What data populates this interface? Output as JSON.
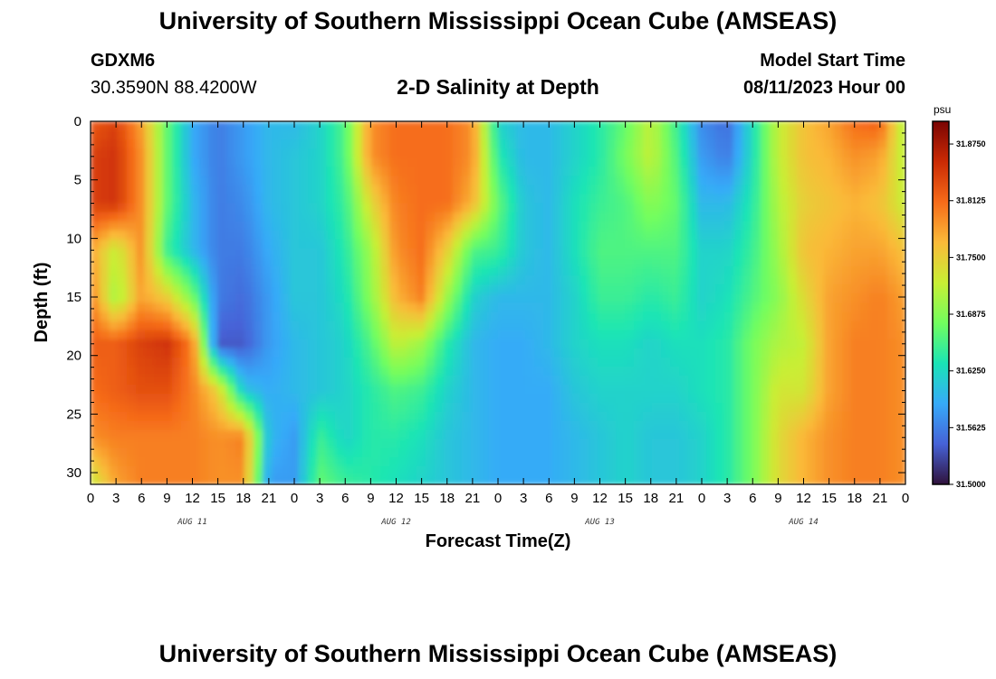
{
  "header": {
    "title": "University of Southern Mississippi Ocean Cube (AMSEAS)",
    "station": "GDXM6",
    "coords": "30.3590N  88.4200W",
    "subtitle": "2-D Salinity at Depth",
    "model_start_label": "Model Start Time",
    "model_start_value": "08/11/2023 Hour 00"
  },
  "footer": {
    "title": "University of Southern Mississippi Ocean Cube (AMSEAS)"
  },
  "chart_data": {
    "type": "heatmap",
    "xlabel": "Forecast Time(Z)",
    "ylabel": "Depth (ft)",
    "x_tick_labels": [
      "0",
      "3",
      "6",
      "9",
      "12",
      "15",
      "18",
      "21",
      "0",
      "3",
      "6",
      "9",
      "12",
      "15",
      "18",
      "21",
      "0",
      "3",
      "6",
      "9",
      "12",
      "15",
      "18",
      "21",
      "0",
      "3",
      "6",
      "9",
      "12",
      "15",
      "18",
      "21",
      "0"
    ],
    "x_range_hours": [
      0,
      96
    ],
    "day_labels": [
      {
        "label": "AUG 11",
        "hour": 12
      },
      {
        "label": "AUG 12",
        "hour": 36
      },
      {
        "label": "AUG 13",
        "hour": 60
      },
      {
        "label": "AUG 14",
        "hour": 84
      }
    ],
    "y_range_ft": [
      0,
      31
    ],
    "y_reversed": true,
    "y_tick_labels": [
      "0",
      "5",
      "10",
      "15",
      "20",
      "25",
      "30"
    ],
    "y_tick_values": [
      0,
      5,
      10,
      15,
      20,
      25,
      30
    ],
    "colorbar": {
      "unit": "psu",
      "range": [
        31.5,
        31.9
      ],
      "tick_values": [
        31.5,
        31.5625,
        31.625,
        31.6875,
        31.75,
        31.8125,
        31.875
      ],
      "tick_labels": [
        "31.5000",
        "31.5625",
        "31.6250",
        "31.6875",
        "31.7500",
        "31.8125",
        "31.8750"
      ],
      "colors": [
        "#30123b",
        "#4662d7",
        "#36aaf9",
        "#1ae4b6",
        "#72fe5e",
        "#c8ef34",
        "#faba39",
        "#f66b19",
        "#ca2a04",
        "#7a0403"
      ]
    },
    "depth_levels_ft": [
      0,
      3,
      7,
      11,
      15,
      19,
      23,
      27,
      31
    ],
    "time_hours": [
      0,
      3,
      6,
      9,
      12,
      15,
      18,
      21,
      24,
      27,
      30,
      33,
      36,
      39,
      42,
      45,
      48,
      51,
      54,
      57,
      60,
      63,
      66,
      69,
      72,
      75,
      78,
      81,
      84,
      87,
      90,
      93,
      96
    ],
    "salinity_psu": [
      [
        31.82,
        31.84,
        31.78,
        31.67,
        31.59,
        31.56,
        31.58,
        31.6,
        31.6,
        31.62,
        31.66,
        31.79,
        31.81,
        31.81,
        31.81,
        31.79,
        31.62,
        31.6,
        31.6,
        31.62,
        31.64,
        31.67,
        31.72,
        31.65,
        31.57,
        31.55,
        31.63,
        31.72,
        31.76,
        31.78,
        31.81,
        31.82,
        31.7
      ],
      [
        31.84,
        31.85,
        31.79,
        31.67,
        31.59,
        31.56,
        31.58,
        31.6,
        31.61,
        31.62,
        31.66,
        31.79,
        31.81,
        31.81,
        31.81,
        31.79,
        31.64,
        31.6,
        31.6,
        31.62,
        31.64,
        31.68,
        31.72,
        31.66,
        31.58,
        31.56,
        31.63,
        31.72,
        31.76,
        31.77,
        31.79,
        31.78,
        31.71
      ],
      [
        31.84,
        31.85,
        31.79,
        31.67,
        31.6,
        31.56,
        31.57,
        31.6,
        31.61,
        31.62,
        31.65,
        31.74,
        31.8,
        31.81,
        31.81,
        31.77,
        31.67,
        31.61,
        31.6,
        31.63,
        31.65,
        31.66,
        31.69,
        31.67,
        31.6,
        31.6,
        31.64,
        31.71,
        31.75,
        31.76,
        31.77,
        31.76,
        31.72
      ],
      [
        31.78,
        31.72,
        31.79,
        31.65,
        31.6,
        31.56,
        31.56,
        31.59,
        31.61,
        31.61,
        31.64,
        31.7,
        31.79,
        31.81,
        31.75,
        31.66,
        31.65,
        31.61,
        31.6,
        31.63,
        31.66,
        31.66,
        31.66,
        31.66,
        31.62,
        31.62,
        31.65,
        31.7,
        31.76,
        31.77,
        31.78,
        31.78,
        31.76
      ],
      [
        31.8,
        31.7,
        31.78,
        31.75,
        31.68,
        31.56,
        31.55,
        31.58,
        31.61,
        31.61,
        31.63,
        31.69,
        31.77,
        31.8,
        31.7,
        31.62,
        31.6,
        31.6,
        31.6,
        31.62,
        31.65,
        31.65,
        31.64,
        31.65,
        31.62,
        31.63,
        31.66,
        31.69,
        31.74,
        31.78,
        31.79,
        31.8,
        31.78
      ],
      [
        31.82,
        31.82,
        31.84,
        31.85,
        31.8,
        31.54,
        31.54,
        31.58,
        31.6,
        31.61,
        31.62,
        31.66,
        31.72,
        31.7,
        31.64,
        31.6,
        31.59,
        31.59,
        31.6,
        31.62,
        31.63,
        31.63,
        31.62,
        31.63,
        31.63,
        31.64,
        31.68,
        31.71,
        31.72,
        31.78,
        31.8,
        31.8,
        31.79
      ],
      [
        31.81,
        31.82,
        31.83,
        31.83,
        31.8,
        31.75,
        31.61,
        31.59,
        31.6,
        31.61,
        31.62,
        31.64,
        31.66,
        31.65,
        31.62,
        31.6,
        31.59,
        31.59,
        31.59,
        31.61,
        31.62,
        31.62,
        31.62,
        31.62,
        31.63,
        31.64,
        31.68,
        31.73,
        31.73,
        31.78,
        31.8,
        31.8,
        31.79
      ],
      [
        31.79,
        31.8,
        31.8,
        31.8,
        31.8,
        31.79,
        31.8,
        31.6,
        31.58,
        31.65,
        31.62,
        31.64,
        31.64,
        31.63,
        31.61,
        31.6,
        31.59,
        31.59,
        31.59,
        31.6,
        31.61,
        31.62,
        31.61,
        31.61,
        31.62,
        31.64,
        31.68,
        31.74,
        31.77,
        31.79,
        31.8,
        31.8,
        31.79
      ],
      [
        31.72,
        31.78,
        31.8,
        31.8,
        31.8,
        31.79,
        31.79,
        31.58,
        31.58,
        31.67,
        31.65,
        31.64,
        31.63,
        31.62,
        31.61,
        31.6,
        31.59,
        31.59,
        31.59,
        31.6,
        31.61,
        31.62,
        31.61,
        31.61,
        31.62,
        31.64,
        31.68,
        31.74,
        31.77,
        31.79,
        31.8,
        31.8,
        31.79
      ]
    ]
  }
}
